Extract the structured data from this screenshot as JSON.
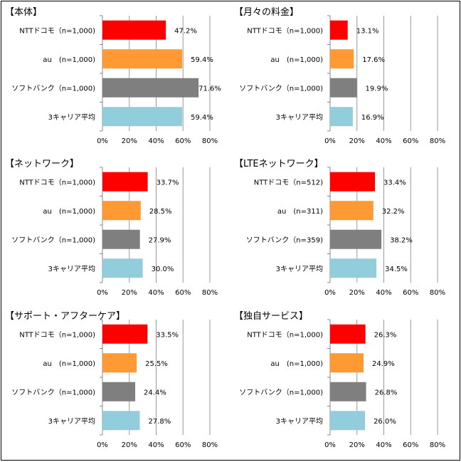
{
  "colors": [
    "#ff0000",
    "#ff9933",
    "#7f7f7f",
    "#92cddc"
  ],
  "chart_data": [
    {
      "type": "bar",
      "orientation": "horizontal",
      "title": "【本体】",
      "categories": [
        "NTTドコモ（n=1,000)",
        "au　(n=1,000)",
        "ソフトバンク（n=1,000)",
        "3キャリア平均"
      ],
      "values": [
        47.2,
        59.4,
        71.6,
        59.4
      ],
      "value_labels": [
        "47.2%",
        "59.4%",
        "71.6%",
        "59.4%"
      ],
      "xlim": [
        0,
        80
      ],
      "xticks": [
        "0%",
        "20%",
        "40%",
        "60%",
        "80%"
      ],
      "grid": true
    },
    {
      "type": "bar",
      "orientation": "horizontal",
      "title": "【月々の料金】",
      "categories": [
        "NTTドコモ（n=1,000)",
        "au　(n=1,000)",
        "ソフトバンク（n=1,000)",
        "3キャリア平均"
      ],
      "values": [
        13.1,
        17.6,
        19.9,
        16.9
      ],
      "value_labels": [
        "13.1%",
        "17.6%",
        "19.9%",
        "16.9%"
      ],
      "xlim": [
        0,
        80
      ],
      "xticks": [
        "0%",
        "20%",
        "40%",
        "60%",
        "80%"
      ],
      "grid": true
    },
    {
      "type": "bar",
      "orientation": "horizontal",
      "title": "【ネットワーク】",
      "categories": [
        "NTTドコモ（n=1,000)",
        "au　(n=1,000)",
        "ソフトバンク（n=1,000)",
        "3キャリア平均"
      ],
      "values": [
        33.7,
        28.5,
        27.9,
        30.0
      ],
      "value_labels": [
        "33.7%",
        "28.5%",
        "27.9%",
        "30.0%"
      ],
      "xlim": [
        0,
        80
      ],
      "xticks": [
        "0%",
        "20%",
        "40%",
        "60%",
        "80%"
      ],
      "grid": true
    },
    {
      "type": "bar",
      "orientation": "horizontal",
      "title": "【LTEネットワーク】",
      "categories": [
        "NTTドコモ（n=512)",
        "au　(n=311)",
        "ソフトバンク（n=359)",
        "3キャリア平均"
      ],
      "values": [
        33.4,
        32.2,
        38.2,
        34.5
      ],
      "value_labels": [
        "33.4%",
        "32.2%",
        "38.2%",
        "34.5%"
      ],
      "xlim": [
        0,
        80
      ],
      "xticks": [
        "0%",
        "20%",
        "40%",
        "60%",
        "80%"
      ],
      "grid": true
    },
    {
      "type": "bar",
      "orientation": "horizontal",
      "title": "【サポート・アフターケア】",
      "categories": [
        "NTTドコモ（n=1,000)",
        "au　(n=1,000)",
        "ソフトバンク（n=1,000)",
        "3キャリア平均"
      ],
      "values": [
        33.5,
        25.5,
        24.4,
        27.8
      ],
      "value_labels": [
        "33.5%",
        "25.5%",
        "24.4%",
        "27.8%"
      ],
      "xlim": [
        0,
        80
      ],
      "xticks": [
        "0%",
        "20%",
        "40%",
        "60%",
        "80%"
      ],
      "grid": true
    },
    {
      "type": "bar",
      "orientation": "horizontal",
      "title": "【独自サービス】",
      "categories": [
        "NTTドコモ（n=1,000)",
        "au　(n=1,000)",
        "ソフトバンク（n=1,000)",
        "3キャリア平均"
      ],
      "values": [
        26.3,
        24.9,
        26.8,
        26.0
      ],
      "value_labels": [
        "26.3%",
        "24.9%",
        "26.8%",
        "26.0%"
      ],
      "xlim": [
        0,
        80
      ],
      "xticks": [
        "0%",
        "20%",
        "40%",
        "60%",
        "80%"
      ],
      "grid": true
    }
  ]
}
